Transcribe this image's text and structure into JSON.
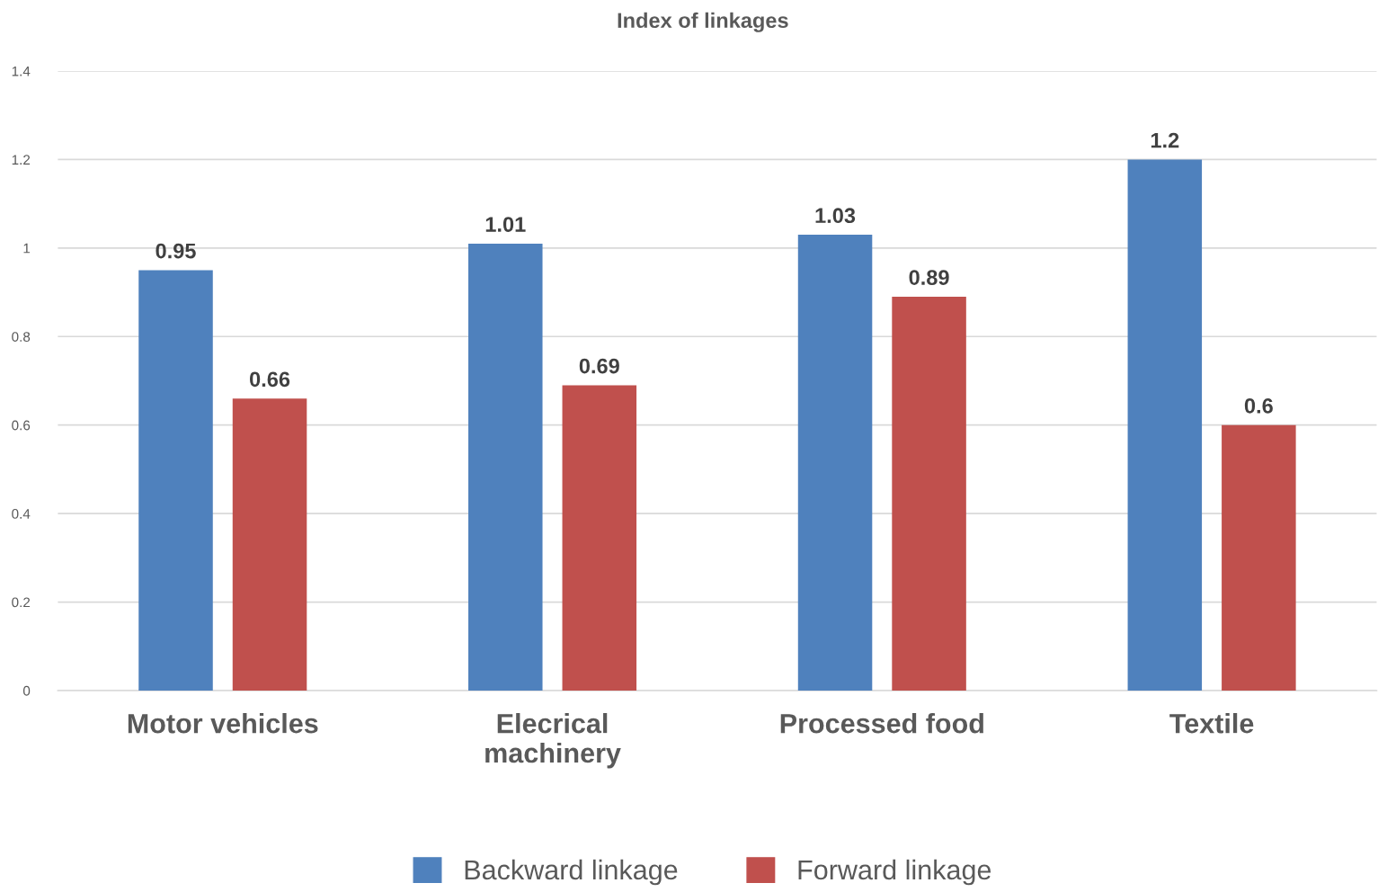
{
  "chart_data": {
    "type": "bar",
    "title": "Index of linkages",
    "categories": [
      "Motor vehicles",
      "Elecrical machinery",
      "Processed food",
      "Textile"
    ],
    "series": [
      {
        "name": "Backward linkage",
        "color": "#4f81bd",
        "values": [
          0.95,
          1.01,
          1.03,
          1.2
        ]
      },
      {
        "name": "Forward linkage",
        "color": "#c0504d",
        "values": [
          0.66,
          0.69,
          0.89,
          0.6
        ]
      }
    ],
    "ylim": [
      0,
      1.4
    ],
    "yticks": [
      0,
      0.2,
      0.4,
      0.6,
      0.8,
      1,
      1.2,
      1.4
    ],
    "grid": "y",
    "legend": "bottom",
    "data_labels": true
  }
}
